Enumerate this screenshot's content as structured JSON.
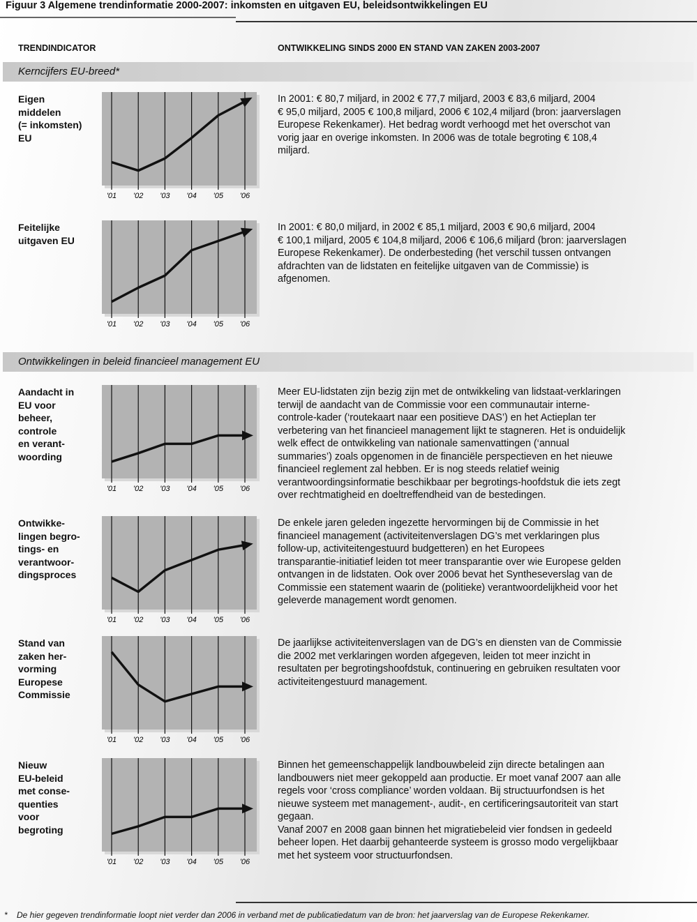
{
  "title": "Figuur 3  Algemene trendinformatie 2000-2007: inkomsten en uitgaven EU, beleidsontwikkelingen EU",
  "header": {
    "indicator": "TRENDINDICATOR",
    "development": "ONTWIKKELING SINDS 2000 EN STAND VAN ZAKEN 2003-2007"
  },
  "sections": [
    {
      "title": "Kerncijfers EU-breed*",
      "rows": [
        {
          "label": [
            "Eigen",
            "middelen",
            "(= inkomsten)",
            "EU"
          ],
          "text": [
            "In 2001: € 80,7 miljard, in 2002 € 77,7 miljard, 2003   € 83,6 miljard, 2004",
            "€ 95,0 miljard, 2005 € 100,8 miljard, 2006 € 102,4 miljard (bron: jaarverslagen",
            "Europese Rekenkamer). Het bedrag wordt verhoogd met het overschot van",
            "vorig jaar en overige inkomsten. In 2006 was de totale begroting € 108,4",
            "miljard."
          ],
          "chart": {
            "type": "line",
            "categories": [
              "'01",
              "'02",
              "'03",
              "'04",
              "'05",
              "'06"
            ],
            "values": [
              25,
              16,
              29,
              51,
              75,
              90
            ],
            "ylim": [
              0,
              100
            ]
          }
        },
        {
          "label": [
            "Feitelijke",
            "uitgaven EU"
          ],
          "text": [
            "In 2001: € 80,0 miljard, in 2002 € 85,1 miljard, 2003   € 90,6 miljard, 2004",
            "€ 100,1 miljard, 2005 € 104,8 miljard, 2006 € 106,6 miljard (bron: jaarverslagen",
            "Europese Rekenkamer). De onderbesteding (het verschil tussen ontvangen",
            "afdrachten van de lidstaten en feitelijke uitgaven van de Commissie) is",
            "afgenomen."
          ],
          "chart": {
            "type": "line",
            "categories": [
              "'01",
              "'02",
              "'03",
              "'04",
              "'05",
              "'06"
            ],
            "values": [
              13,
              28,
              41,
              68,
              78,
              88
            ],
            "ylim": [
              0,
              100
            ]
          }
        }
      ]
    },
    {
      "title": "Ontwikkelingen in beleid financieel management EU",
      "rows": [
        {
          "label": [
            "Aandacht in",
            "EU voor",
            "beheer,",
            "controle",
            "en verant-",
            "woording"
          ],
          "text": [
            "Meer EU-lidstaten zijn bezig zijn met de ontwikkeling van lidstaat-verklaringen",
            "terwijl de aandacht van de Commissie voor een communautair interne-",
            "controle-kader (‘routekaart naar een positieve DAS’) en het Actieplan ter",
            "verbetering van het financieel management lijkt te stagneren. Het is onduidelijk",
            "welk effect de ontwikkeling van nationale samenvattingen (‘annual",
            "summaries’) zoals opgenomen in de financiële perspectieven en het nieuwe",
            "financieel reglement zal hebben. Er is nog steeds relatief weinig",
            "verantwoordingsinformatie beschikbaar per begrotings-hoofdstuk die iets zegt",
            "over rechtmatigheid en doeltreffendheid van de bestedingen."
          ],
          "chart": {
            "type": "line",
            "categories": [
              "'01",
              "'02",
              "'03",
              "'04",
              "'05",
              "'06"
            ],
            "values": [
              18,
              27,
              37,
              37,
              46,
              46
            ],
            "ylim": [
              0,
              100
            ]
          }
        },
        {
          "label": [
            "Ontwikke-",
            "lingen begro-",
            "tings- en",
            "verantwoor-",
            "dingsproces"
          ],
          "text": [
            "De enkele jaren geleden ingezette hervormingen bij de Commissie in het",
            "financieel management (activiteitenverslagen DG’s met verklaringen plus",
            "follow-up, activiteitengestuurd budgetteren) en het Europees",
            "transparantie-initiatief leiden tot meer transparantie over wie Europese gelden",
            "ontvangen in de lidstaten. Ook over 2006 bevat het Syntheseverslag van de",
            "Commissie een statement waarin de (politieke) verantwoordelijkheid voor het",
            "geleverde management wordt genomen."
          ],
          "chart": {
            "type": "line",
            "categories": [
              "'01",
              "'02",
              "'03",
              "'04",
              "'05",
              "'06"
            ],
            "values": [
              34,
              19,
              42,
              53,
              64,
              69
            ],
            "ylim": [
              0,
              100
            ]
          }
        },
        {
          "label": [
            "Stand van",
            "zaken her-",
            "vorming",
            "Europese",
            "Commissie"
          ],
          "text": [
            "De jaarlijkse activiteitenverslagen van de DG’s en diensten van de Commissie",
            "die 2002 met verklaringen worden afgegeven, leiden tot meer inzicht in",
            "resultaten per begrotingshoofdstuk, continuering en gebruiken resultaten voor",
            "activiteitengestuurd management."
          ],
          "chart": {
            "type": "line",
            "categories": [
              "'01",
              "'02",
              "'03",
              "'04",
              "'05",
              "'06"
            ],
            "values": [
              83,
              48,
              30,
              38,
              46,
              46
            ],
            "ylim": [
              0,
              100
            ]
          }
        },
        {
          "label": [
            "Nieuw",
            "EU-beleid",
            "met conse-",
            "quenties",
            "voor",
            "begroting"
          ],
          "text": [
            "Binnen het gemeenschappelijk landbouwbeleid zijn directe betalingen aan",
            "landbouwers niet meer gekoppeld aan productie. Er moet vanaf 2007 aan alle",
            "regels voor ‘cross compliance’ worden voldaan. Bij structuurfondsen is het",
            "nieuwe systeem met management-, audit-, en certificeringsautoriteit van start",
            "gegaan.",
            "Vanaf 2007 en 2008 gaan binnen het migratiebeleid vier fondsen in gedeeld",
            "beheer lopen. Het daarbij gehanteerde systeem is grosso modo vergelijkbaar",
            "met het systeem voor structuurfondsen."
          ],
          "chart": {
            "type": "line",
            "categories": [
              "'01",
              "'02",
              "'03",
              "'04",
              "'05",
              "'06"
            ],
            "values": [
              19,
              27,
              37,
              37,
              46,
              46
            ],
            "ylim": [
              0,
              100
            ]
          }
        }
      ]
    }
  ],
  "footnote_marker": "*",
  "footnote": "De hier gegeven trendinformatie loopt niet verder dan 2006 in verband met de publicatiedatum van de bron: het jaarverslag van de Europese Rekenkamer."
}
